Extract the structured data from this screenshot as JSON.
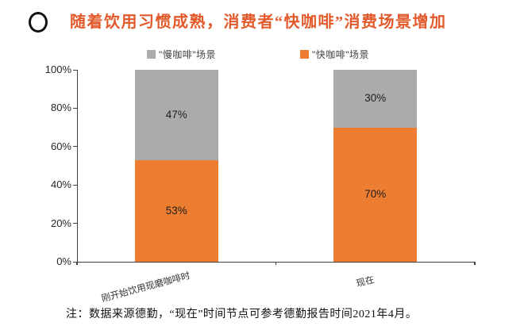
{
  "header": {
    "title": "随着饮用习惯成熟，消费者“快咖啡”消费场景增加"
  },
  "legend": [
    {
      "label": "\"慢咖啡\"场景",
      "color": "#ABABAB"
    },
    {
      "label": "\"快咖啡\"场景",
      "color": "#ED7D31"
    }
  ],
  "chart_data": {
    "type": "bar",
    "stacked": true,
    "title": "随着饮用习惯成熟，消费者“快咖啡”消费场景增加",
    "categories": [
      "刚开始饮用现磨咖啡时",
      "现在"
    ],
    "series": [
      {
        "name": "\"快咖啡\"场景",
        "color": "#ED7D31",
        "values": [
          53,
          70
        ]
      },
      {
        "name": "\"慢咖啡\"场景",
        "color": "#ABABAB",
        "values": [
          47,
          30
        ]
      }
    ],
    "value_labels": [
      [
        "53%",
        "70%"
      ],
      [
        "47%",
        "30%"
      ]
    ],
    "xlabel": "",
    "ylabel": "",
    "ylim": [
      0,
      100
    ],
    "yticks": [
      "0%",
      "20%",
      "40%",
      "60%",
      "80%",
      "100%"
    ],
    "grid": false,
    "legend_position": "top"
  },
  "footnote": "注：数据来源德勤，“现在”时间节点可参考德勤报告时间2021年4月。"
}
